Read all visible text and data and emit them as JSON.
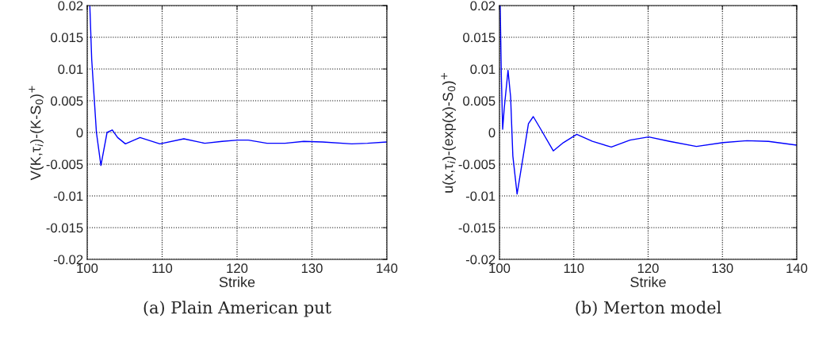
{
  "chart_data": [
    {
      "type": "line",
      "xlabel": "Strike",
      "ylabel": "V(K,τ$_{i}$)-(K-S$_{0}$)$^{+}$",
      "annotations": [
        "(a) Plain American put"
      ],
      "xlim": [
        100,
        140
      ],
      "xticks": [
        100,
        110,
        120,
        130,
        140
      ],
      "ylim": [
        -0.02,
        0.02
      ],
      "yticks": [
        -0.02,
        -0.015,
        -0.01,
        -0.005,
        0,
        0.005,
        0.01,
        0.015,
        0.02
      ],
      "grid": true,
      "line_style": "solid",
      "series": [
        {
          "color": "#0000ff",
          "x": [
            100.35,
            100.6,
            101.23,
            101.83,
            102.65,
            103.35,
            104.06,
            105.1,
            107.05,
            109.7,
            112.9,
            115.7,
            118.0,
            120.1,
            121.5,
            124.0,
            126.4,
            128.9,
            131.4,
            135.3,
            137.4,
            140
          ],
          "values": [
            0.02,
            0.0115,
            0.0,
            -0.0052,
            0.0,
            0.0004,
            -0.0008,
            -0.0018,
            -0.0008,
            -0.0018,
            -0.001,
            -0.0017,
            -0.0014,
            -0.0012,
            -0.0012,
            -0.0017,
            -0.0017,
            -0.0014,
            -0.0015,
            -0.0018,
            -0.0017,
            -0.0015
          ]
        }
      ]
    },
    {
      "type": "line",
      "xlabel": "Strike",
      "ylabel": "u(x,τ$_{i}$)-(exp(x)-S$_{0}$)$^{+}$",
      "annotations": [
        "(b) Merton model"
      ],
      "xlim": [
        100,
        140
      ],
      "xticks": [
        100,
        110,
        120,
        130,
        140
      ],
      "ylim": [
        -0.02,
        0.02
      ],
      "yticks": [
        -0.02,
        -0.015,
        -0.01,
        -0.005,
        0,
        0.005,
        0.01,
        0.015,
        0.02
      ],
      "grid": true,
      "line_style": "solid",
      "series": [
        {
          "color": "#0000ff",
          "x": [
            100.1,
            100.25,
            100.43,
            100.65,
            101.15,
            101.5,
            101.8,
            102.37,
            103.2,
            103.9,
            104.55,
            105.56,
            107.24,
            108.6,
            110.4,
            112.5,
            115.05,
            117.56,
            120.07,
            122.9,
            126.5,
            130.1,
            133.3,
            136.2,
            140
          ],
          "values": [
            0.02,
            0.009,
            0.0005,
            0.0039,
            0.0098,
            0.0056,
            -0.0037,
            -0.0097,
            -0.0037,
            0.0014,
            0.0025,
            0.0005,
            -0.0029,
            -0.0016,
            -0.0003,
            -0.0014,
            -0.0023,
            -0.0012,
            -0.0007,
            -0.0014,
            -0.0022,
            -0.0016,
            -0.0013,
            -0.0014,
            -0.002
          ]
        }
      ]
    }
  ]
}
